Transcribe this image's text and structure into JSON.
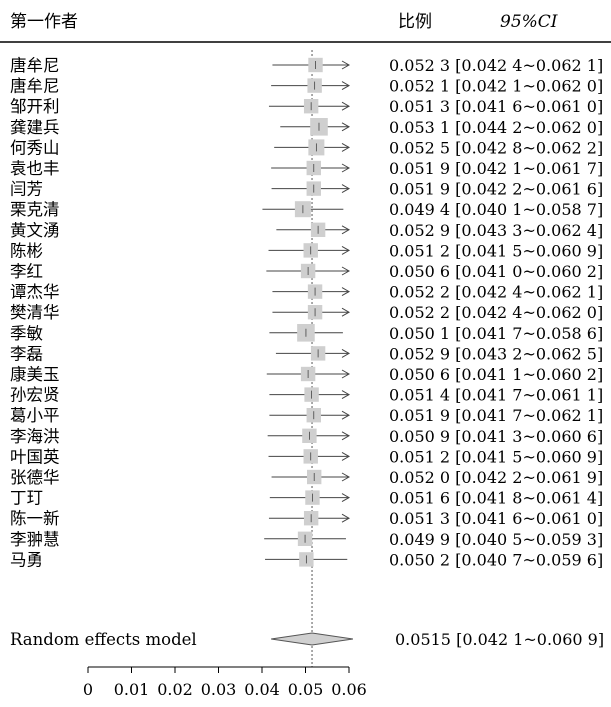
{
  "chart_data": {
    "type": "forest",
    "headers": {
      "study": "第一作者",
      "proportion": "比例",
      "ci": "95%CI"
    },
    "xlim": [
      0,
      0.06
    ],
    "xticks": [
      0,
      0.01,
      0.02,
      0.03,
      0.04,
      0.05,
      0.06
    ],
    "xtick_labels": [
      "0",
      "0.01",
      "0.02",
      "0.03",
      "0.04",
      "0.05",
      "0.06"
    ],
    "reference_line": 0.0515,
    "studies": [
      {
        "name": "唐牟尼",
        "est": 0.0523,
        "lo": 0.0424,
        "hi": 0.0621,
        "weight": 0.9,
        "text": "0.052 3 [0.042 4~0.062 1]"
      },
      {
        "name": "唐牟尼",
        "est": 0.0521,
        "lo": 0.0421,
        "hi": 0.062,
        "weight": 0.9,
        "text": "0.052 1 [0.042 1~0.062 0]"
      },
      {
        "name": "邹开利",
        "est": 0.0513,
        "lo": 0.0416,
        "hi": 0.061,
        "weight": 0.9,
        "text": "0.051 3 [0.041 6~0.061 0]"
      },
      {
        "name": "龚建兵",
        "est": 0.0531,
        "lo": 0.0442,
        "hi": 0.062,
        "weight": 1.1,
        "text": "0.053 1 [0.044 2~0.062 0]"
      },
      {
        "name": "何秀山",
        "est": 0.0525,
        "lo": 0.0428,
        "hi": 0.0622,
        "weight": 1.0,
        "text": "0.052 5 [0.042 8~0.062 2]"
      },
      {
        "name": "袁也丰",
        "est": 0.0519,
        "lo": 0.0421,
        "hi": 0.0617,
        "weight": 0.9,
        "text": "0.051 9 [0.042 1~0.061 7]"
      },
      {
        "name": "闫芳",
        "est": 0.0519,
        "lo": 0.0422,
        "hi": 0.0616,
        "weight": 0.9,
        "text": "0.051 9 [0.042 2~0.061 6]"
      },
      {
        "name": "栗克清",
        "est": 0.0494,
        "lo": 0.0401,
        "hi": 0.0587,
        "weight": 1.0,
        "text": "0.049 4 [0.040 1~0.058 7]"
      },
      {
        "name": "黄文湧",
        "est": 0.0529,
        "lo": 0.0433,
        "hi": 0.0624,
        "weight": 0.9,
        "text": "0.052 9 [0.043 3~0.062 4]"
      },
      {
        "name": "陈彬",
        "est": 0.0512,
        "lo": 0.0415,
        "hi": 0.0609,
        "weight": 0.9,
        "text": "0.051 2 [0.041 5~0.060 9]"
      },
      {
        "name": "李红",
        "est": 0.0506,
        "lo": 0.041,
        "hi": 0.0602,
        "weight": 0.9,
        "text": "0.050 6 [0.041 0~0.060 2]"
      },
      {
        "name": "谭杰华",
        "est": 0.0522,
        "lo": 0.0424,
        "hi": 0.0621,
        "weight": 0.9,
        "text": "0.052 2 [0.042 4~0.062 1]"
      },
      {
        "name": "樊清华",
        "est": 0.0522,
        "lo": 0.0424,
        "hi": 0.062,
        "weight": 0.9,
        "text": "0.052 2 [0.042 4~0.062 0]"
      },
      {
        "name": "季敏",
        "est": 0.0501,
        "lo": 0.0417,
        "hi": 0.0586,
        "weight": 1.1,
        "text": "0.050 1 [0.041 7~0.058 6]"
      },
      {
        "name": "李磊",
        "est": 0.0529,
        "lo": 0.0432,
        "hi": 0.0625,
        "weight": 0.9,
        "text": "0.052 9 [0.043 2~0.062 5]"
      },
      {
        "name": "康美玉",
        "est": 0.0506,
        "lo": 0.0411,
        "hi": 0.0602,
        "weight": 0.9,
        "text": "0.050 6 [0.041 1~0.060 2]"
      },
      {
        "name": "孙宏贤",
        "est": 0.0514,
        "lo": 0.0417,
        "hi": 0.0611,
        "weight": 0.9,
        "text": "0.051 4 [0.041 7~0.061 1]"
      },
      {
        "name": "葛小平",
        "est": 0.0519,
        "lo": 0.0417,
        "hi": 0.0621,
        "weight": 0.9,
        "text": "0.051 9 [0.041 7~0.062 1]"
      },
      {
        "name": "李海洪",
        "est": 0.0509,
        "lo": 0.0413,
        "hi": 0.0606,
        "weight": 0.9,
        "text": "0.050 9 [0.041 3~0.060 6]"
      },
      {
        "name": "叶国英",
        "est": 0.0512,
        "lo": 0.0415,
        "hi": 0.0609,
        "weight": 0.9,
        "text": "0.051 2 [0.041 5~0.060 9]"
      },
      {
        "name": "张德华",
        "est": 0.052,
        "lo": 0.0422,
        "hi": 0.0619,
        "weight": 0.9,
        "text": "0.052 0 [0.042 2~0.061 9]"
      },
      {
        "name": "丁玎",
        "est": 0.0516,
        "lo": 0.0418,
        "hi": 0.0614,
        "weight": 0.9,
        "text": "0.051 6 [0.041 8~0.061 4]"
      },
      {
        "name": "陈一新",
        "est": 0.0513,
        "lo": 0.0416,
        "hi": 0.061,
        "weight": 0.9,
        "text": "0.051 3 [0.041 6~0.061 0]"
      },
      {
        "name": "李翀慧",
        "est": 0.0499,
        "lo": 0.0405,
        "hi": 0.0593,
        "weight": 0.9,
        "text": "0.049 9 [0.040 5~0.059 3]"
      },
      {
        "name": "马勇",
        "est": 0.0502,
        "lo": 0.0407,
        "hi": 0.0596,
        "weight": 0.9,
        "text": "0.050 2 [0.040 7~0.059 6]"
      }
    ],
    "summary": {
      "name": "Random effects model",
      "est": 0.0515,
      "lo": 0.0421,
      "hi": 0.0609,
      "text": "0.0515 [0.042 1~0.060 9]"
    },
    "colors": {
      "square": "#cfcfcf",
      "line": "#444444",
      "diamond": "#d0d0d0",
      "axis": "#000000"
    }
  }
}
